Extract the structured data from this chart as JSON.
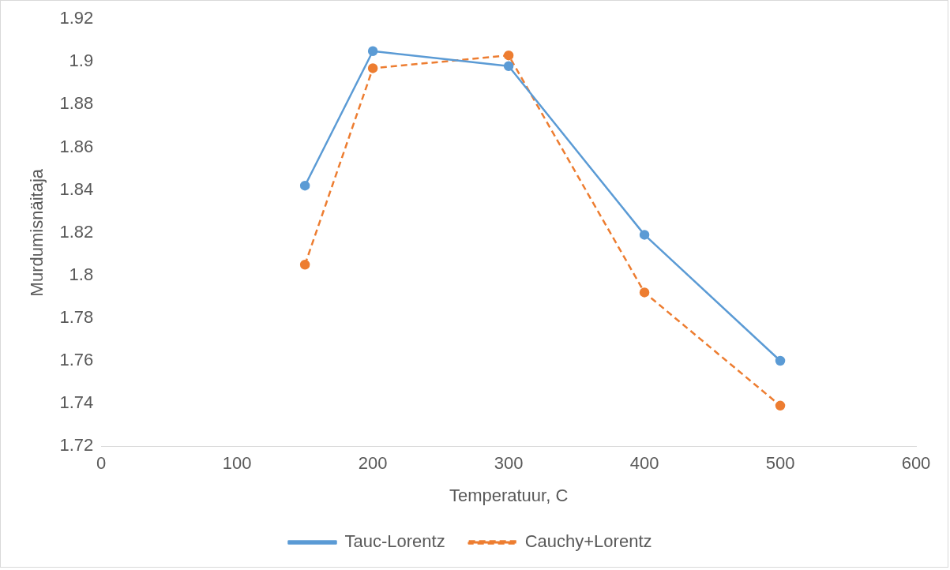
{
  "chart_data": {
    "type": "line",
    "xlabel": "Temperatuur, C",
    "ylabel": "Murdumisnäitaja",
    "x": [
      150,
      200,
      300,
      400,
      500
    ],
    "series": [
      {
        "name": "Tauc-Lorentz",
        "color": "#5b9bd5",
        "values": [
          1.842,
          1.905,
          1.898,
          1.819,
          1.76
        ],
        "line_style": "solid"
      },
      {
        "name": "Cauchy+Lorentz",
        "color": "#ed7d31",
        "values": [
          1.805,
          1.897,
          1.903,
          1.792,
          1.739
        ],
        "line_style": "dashed"
      }
    ],
    "xlim": [
      0,
      600
    ],
    "xticks": [
      0,
      100,
      200,
      300,
      400,
      500,
      600
    ],
    "ylim": [
      1.72,
      1.92
    ],
    "yticks": [
      {
        "value": 1.72,
        "label": "1.72"
      },
      {
        "value": 1.74,
        "label": "1.74"
      },
      {
        "value": 1.76,
        "label": "1.76"
      },
      {
        "value": 1.78,
        "label": "1.78"
      },
      {
        "value": 1.8,
        "label": "1.8"
      },
      {
        "value": 1.82,
        "label": "1.82"
      },
      {
        "value": 1.84,
        "label": "1.84"
      },
      {
        "value": 1.86,
        "label": "1.86"
      },
      {
        "value": 1.88,
        "label": "1.88"
      },
      {
        "value": 1.9,
        "label": "1.9"
      },
      {
        "value": 1.92,
        "label": "1.92"
      }
    ],
    "grid": false,
    "legend": "bottom",
    "marker": "circle"
  }
}
